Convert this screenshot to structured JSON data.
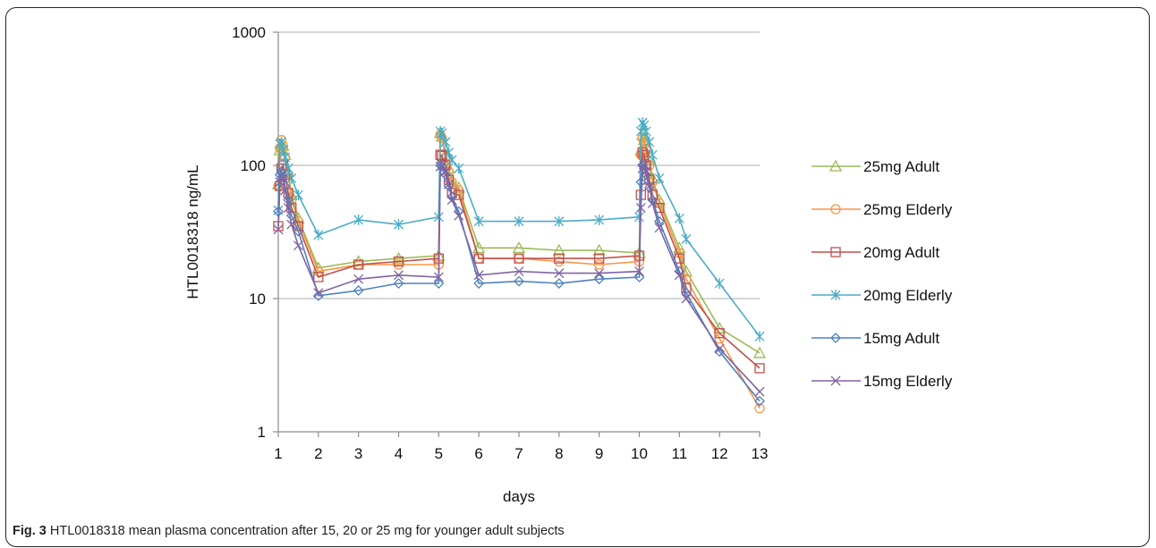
{
  "caption": {
    "label": "Fig. 3",
    "text": "HTL0018318 mean plasma concentration after 15, 20 or 25 mg for younger adult subjects"
  },
  "chart_data": {
    "type": "line",
    "xlabel": "days",
    "ylabel": "HTL0018318 ng/mL",
    "yscale": "log",
    "ylim": [
      1,
      1000
    ],
    "xlim": [
      1,
      13
    ],
    "x_ticks": [
      "1",
      "2",
      "3",
      "4",
      "5",
      "6",
      "7",
      "8",
      "9",
      "10",
      "11",
      "12",
      "13"
    ],
    "y_ticks": [
      "1",
      "10",
      "100",
      "1000"
    ],
    "grid": "horizontal",
    "legend_position": "right",
    "series": [
      {
        "name": "25mg Adult",
        "color": "#9BBB59",
        "marker": "triangle",
        "x": [
          1,
          1.04,
          1.08,
          1.12,
          1.17,
          1.25,
          1.33,
          1.5,
          2,
          3,
          4,
          5,
          5.04,
          5.08,
          5.17,
          5.25,
          5.33,
          5.5,
          6,
          7,
          8,
          9,
          10,
          10.04,
          10.08,
          10.12,
          10.17,
          10.25,
          10.33,
          10.5,
          11,
          11.17,
          12,
          13
        ],
        "y": [
          72,
          130,
          145,
          140,
          120,
          90,
          60,
          40,
          17,
          19,
          20,
          21,
          175,
          165,
          120,
          95,
          75,
          68,
          24,
          24,
          23,
          23,
          22,
          130,
          170,
          155,
          140,
          110,
          80,
          55,
          24,
          16,
          6,
          3.9
        ]
      },
      {
        "name": "25mg Elderly",
        "color": "#F79646",
        "marker": "circle",
        "x": [
          1,
          1.04,
          1.08,
          1.12,
          1.17,
          1.25,
          1.33,
          1.5,
          2,
          3,
          4,
          5,
          5.04,
          5.08,
          5.17,
          5.25,
          5.33,
          5.5,
          6,
          7,
          8,
          9,
          10,
          10.04,
          10.08,
          10.12,
          10.17,
          10.25,
          10.33,
          10.5,
          11,
          11.17,
          12,
          13
        ],
        "y": [
          70,
          135,
          155,
          140,
          115,
          85,
          55,
          38,
          16,
          18,
          18,
          18,
          170,
          160,
          115,
          90,
          75,
          65,
          20,
          20,
          19,
          18,
          19,
          120,
          160,
          150,
          130,
          100,
          75,
          52,
          22,
          14,
          5,
          1.5
        ]
      },
      {
        "name": "20mg Adult",
        "color": "#C0504D",
        "marker": "square",
        "x": [
          1,
          1.04,
          1.08,
          1.12,
          1.17,
          1.25,
          1.33,
          1.5,
          2,
          3,
          4,
          5,
          5.04,
          5.08,
          5.17,
          5.25,
          5.33,
          5.5,
          6,
          7,
          8,
          9,
          10,
          10.04,
          10.08,
          10.12,
          10.17,
          10.25,
          10.33,
          10.5,
          11,
          11.17,
          12,
          13
        ],
        "y": [
          35,
          70,
          95,
          100,
          85,
          62,
          48,
          35,
          14.5,
          18,
          19,
          20,
          120,
          118,
          100,
          78,
          62,
          60,
          20,
          20,
          20,
          20,
          21,
          60,
          125,
          120,
          100,
          78,
          60,
          48,
          20,
          12,
          5.5,
          3
        ]
      },
      {
        "name": "20mg Elderly",
        "color": "#4BACC6",
        "marker": "star",
        "x": [
          1,
          1.04,
          1.08,
          1.12,
          1.17,
          1.25,
          1.33,
          1.5,
          2,
          3,
          4,
          5,
          5.04,
          5.08,
          5.17,
          5.25,
          5.33,
          5.5,
          6,
          7,
          8,
          9,
          10,
          10.04,
          10.08,
          10.12,
          10.17,
          10.25,
          10.33,
          10.5,
          11,
          11.17,
          12,
          13
        ],
        "y": [
          46,
          145,
          150,
          130,
          115,
          95,
          80,
          60,
          30,
          39,
          36,
          41,
          180,
          175,
          150,
          125,
          110,
          95,
          38,
          38,
          38,
          39,
          41,
          180,
          210,
          200,
          180,
          150,
          120,
          80,
          40,
          28,
          13,
          5.2
        ]
      },
      {
        "name": "15mg Adult",
        "color": "#4F81BD",
        "marker": "diamond",
        "x": [
          1,
          1.04,
          1.08,
          1.12,
          1.17,
          1.25,
          1.33,
          1.5,
          2,
          3,
          4,
          5,
          5.04,
          5.08,
          5.17,
          5.25,
          5.33,
          5.5,
          6,
          7,
          8,
          9,
          10,
          10.04,
          10.08,
          10.12,
          10.17,
          10.25,
          10.33,
          10.5,
          11,
          11.17,
          12,
          13
        ],
        "y": [
          45,
          85,
          90,
          82,
          70,
          55,
          42,
          32,
          10.5,
          11.5,
          13,
          13,
          100,
          98,
          85,
          70,
          58,
          45,
          13,
          13.5,
          13,
          14,
          14.5,
          75,
          100,
          95,
          85,
          68,
          55,
          38,
          16,
          11,
          4,
          1.7
        ]
      },
      {
        "name": "15mg Elderly",
        "color": "#8064A2",
        "marker": "x",
        "x": [
          1,
          1.04,
          1.08,
          1.12,
          1.17,
          1.25,
          1.33,
          1.5,
          2,
          3,
          4,
          5,
          5.04,
          5.08,
          5.17,
          5.25,
          5.33,
          5.5,
          6,
          7,
          8,
          9,
          10,
          10.04,
          10.08,
          10.12,
          10.17,
          10.25,
          10.33,
          10.5,
          11,
          11.17,
          12,
          13
        ],
        "y": [
          33,
          75,
          82,
          80,
          65,
          48,
          36,
          25,
          11,
          14,
          15,
          14.5,
          98,
          100,
          90,
          72,
          55,
          42,
          15,
          16,
          15.5,
          15.5,
          16,
          48,
          95,
          100,
          90,
          70,
          52,
          34,
          15,
          10,
          4.2,
          2
        ]
      }
    ]
  }
}
